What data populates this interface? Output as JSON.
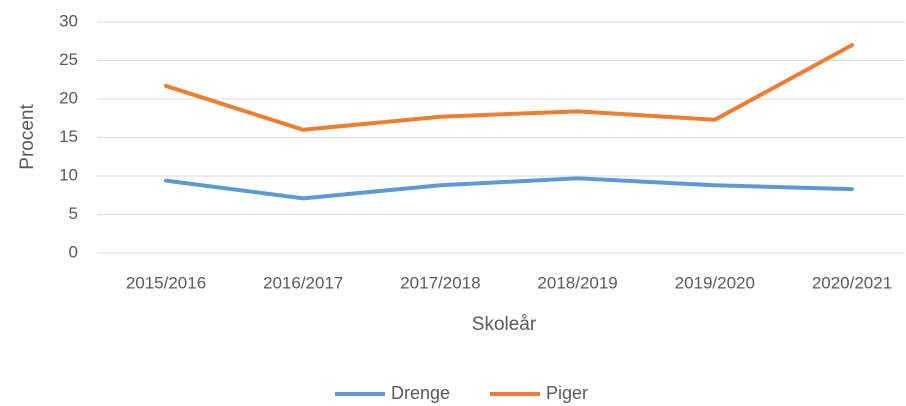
{
  "chart_data": {
    "type": "line",
    "x_label": "Skoleår",
    "y_label": "Procent",
    "categories": [
      "2015/2016",
      "2016/2017",
      "2017/2018",
      "2018/2019",
      "2019/2020",
      "2020/2021"
    ],
    "series": [
      {
        "name": "Drenge",
        "color": "#5b9bd5",
        "values": [
          9.4,
          7.1,
          8.8,
          9.7,
          8.8,
          8.3
        ]
      },
      {
        "name": "Piger",
        "color": "#ed7d31",
        "values": [
          21.7,
          16.0,
          17.7,
          18.4,
          17.3,
          27.0
        ]
      }
    ],
    "ylim": [
      0,
      30
    ],
    "yticks": [
      0,
      5,
      10,
      15,
      20,
      25,
      30
    ],
    "grid": true,
    "legend": "bottom"
  }
}
